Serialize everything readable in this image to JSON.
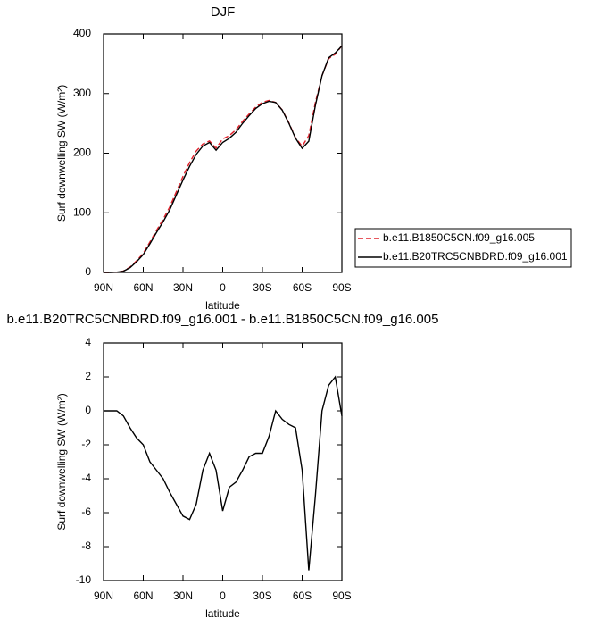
{
  "chart_data": [
    {
      "type": "line",
      "title": "DJF",
      "x_label": "latitude",
      "y_label": "Surf downwelling SW (W/m²)",
      "x": [
        90,
        85,
        80,
        75,
        70,
        65,
        60,
        55,
        50,
        45,
        40,
        35,
        30,
        25,
        20,
        15,
        10,
        5,
        0,
        -5,
        -10,
        -15,
        -20,
        -25,
        -30,
        -35,
        -40,
        -45,
        -50,
        -55,
        -60,
        -65,
        -70,
        -75,
        -80,
        -85,
        -90
      ],
      "series": [
        {
          "name": "b.e11.B1850C5CN.f09_g16.005",
          "color": "#e0202a",
          "dash": true,
          "values": [
            0,
            0,
            0.5,
            2.3,
            9,
            19.6,
            32,
            51,
            70.5,
            89,
            109.8,
            135.5,
            161.2,
            184.4,
            203.5,
            215.5,
            220.5,
            208.5,
            223.9,
            229.5,
            239.2,
            253.5,
            265.7,
            277.5,
            285.5,
            288.5,
            285,
            272.5,
            250.8,
            226,
            211.5,
            229.4,
            285,
            330,
            358.5,
            366,
            380.3
          ]
        },
        {
          "name": "b.e11.B20TRC5CNBDRD.f09_g16.001",
          "color": "#000000",
          "dash": false,
          "values": [
            0,
            0,
            0.5,
            2,
            8,
            18,
            30,
            48,
            67,
            85,
            105,
            130,
            155,
            178,
            198,
            212,
            218,
            205,
            218,
            225,
            235,
            250,
            263,
            275,
            283,
            287,
            285,
            272,
            250,
            225,
            208,
            220,
            280,
            330,
            360,
            368,
            380
          ]
        }
      ],
      "xlim": [
        90,
        -90
      ],
      "xticks": [
        {
          "value": 90,
          "label": "90N"
        },
        {
          "value": 60,
          "label": "60N"
        },
        {
          "value": 30,
          "label": "30N"
        },
        0,
        {
          "value": -30,
          "label": "30S"
        },
        {
          "value": -60,
          "label": "60S"
        },
        {
          "value": -90,
          "label": "90S"
        }
      ],
      "ylim": [
        0,
        400
      ],
      "yticks": [
        0,
        100,
        200,
        300,
        400
      ],
      "legend": "outside-right"
    },
    {
      "type": "line",
      "title": "b.e11.B20TRC5CNBDRD.f09_g16.001 - b.e11.B1850C5CN.f09_g16.005",
      "x_label": "latitude",
      "y_label": "Surf downwelling SW (W/m²)",
      "x": [
        90,
        85,
        80,
        75,
        70,
        65,
        60,
        55,
        50,
        45,
        40,
        35,
        30,
        25,
        20,
        15,
        10,
        5,
        0,
        -5,
        -10,
        -15,
        -20,
        -25,
        -30,
        -35,
        -40,
        -45,
        -50,
        -55,
        -60,
        -65,
        -70,
        -75,
        -80,
        -85,
        -90
      ],
      "series": [
        {
          "color": "#000000",
          "dash": false,
          "values": [
            0,
            0,
            0,
            -0.3,
            -1,
            -1.6,
            -2,
            -3,
            -3.5,
            -4,
            -4.8,
            -5.5,
            -6.2,
            -6.4,
            -5.5,
            -3.5,
            -2.5,
            -3.5,
            -5.9,
            -4.5,
            -4.2,
            -3.5,
            -2.7,
            -2.5,
            -2.5,
            -1.5,
            0,
            -0.5,
            -0.8,
            -1,
            -3.5,
            -9.4,
            -5,
            0,
            1.5,
            2,
            -0.3
          ]
        }
      ],
      "xlim": [
        90,
        -90
      ],
      "xticks": [
        {
          "value": 90,
          "label": "90N"
        },
        {
          "value": 60,
          "label": "60N"
        },
        {
          "value": 30,
          "label": "30N"
        },
        0,
        {
          "value": -30,
          "label": "30S"
        },
        {
          "value": -60,
          "label": "60S"
        },
        {
          "value": -90,
          "label": "90S"
        }
      ],
      "ylim": [
        -10,
        4
      ],
      "yticks": [
        -10,
        -8,
        -6,
        -4,
        -2,
        0,
        2,
        4
      ]
    }
  ]
}
